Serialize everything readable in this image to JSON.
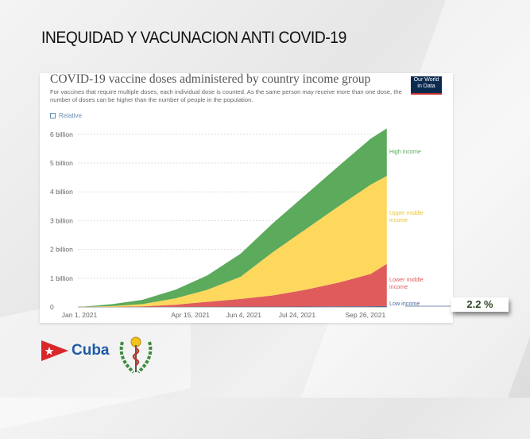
{
  "slide": {
    "title": "INEQUIDAD Y VACUNACION ANTI COVID-19",
    "badge": "2.2 %",
    "logo_text": "Cuba"
  },
  "chart_header": {
    "logo": "Our World in Data",
    "relative_label": "Relative"
  },
  "chart_data": {
    "type": "area",
    "stacked": true,
    "title": "COVID-19 vaccine doses administered by country income group",
    "subtitle": "For vaccines that require multiple doses, each individual dose is counted. As the same person may receive more than one dose, the number of doses can be higher than the number of people in the population.",
    "x": [
      "2021-01-01",
      "2021-02-01",
      "2021-03-01",
      "2021-04-01",
      "2021-05-01",
      "2021-06-01",
      "2021-07-01",
      "2021-08-01",
      "2021-09-01",
      "2021-10-01",
      "2021-10-16"
    ],
    "x_ticks": [
      "Jan 1, 2021",
      "Apr 15, 2021",
      "Jun 4, 2021",
      "Jul 24, 2021",
      "Sep 26, 2021"
    ],
    "x_tick_dates": [
      "2021-01-01",
      "2021-04-15",
      "2021-06-04",
      "2021-07-24",
      "2021-09-26"
    ],
    "y_ticks": [
      "0",
      "1 billion",
      "2 billion",
      "3 billion",
      "4 billion",
      "5 billion",
      "6 billion"
    ],
    "ylim": [
      0,
      6200000000
    ],
    "grid": "horizontal dotted",
    "legend": "right (inline labels)",
    "series": [
      {
        "name": "Low income",
        "color": "#4c6a9c",
        "values": [
          0,
          1000000,
          2000000,
          4000000,
          6000000,
          9000000,
          12000000,
          15000000,
          19000000,
          25000000,
          30000000
        ]
      },
      {
        "name": "Lower middle income",
        "color": "#e05c5c",
        "values": [
          0,
          4000000,
          18000000,
          76000000,
          174000000,
          271000000,
          388000000,
          585000000,
          831000000,
          1125000000,
          1470000000
        ]
      },
      {
        "name": "Upper middle income",
        "color": "#fdd85d",
        "values": [
          0,
          25000000,
          80000000,
          220000000,
          420000000,
          770000000,
          1500000000,
          2100000000,
          2650000000,
          3100000000,
          3050000000
        ]
      },
      {
        "name": "High income",
        "color": "#5caa5c",
        "values": [
          0,
          70000000,
          150000000,
          300000000,
          500000000,
          800000000,
          1000000000,
          1200000000,
          1400000000,
          1600000000,
          1650000000
        ]
      }
    ]
  }
}
